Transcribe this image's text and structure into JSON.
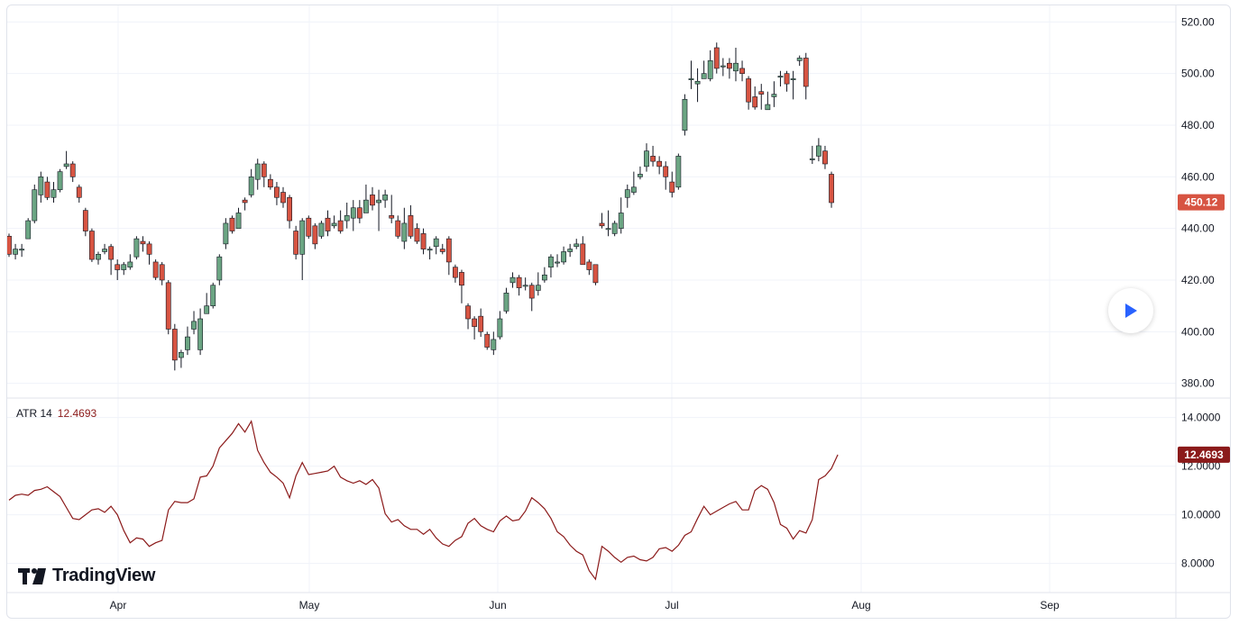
{
  "indicator": {
    "name": "ATR 14",
    "value": "12.4693"
  },
  "brand": {
    "name": "TradingView"
  },
  "colors": {
    "up": "#6ba583",
    "down": "#d75442",
    "atr_line": "#8b1a1a",
    "price_badge": "#d75442",
    "atr_badge": "#8b1a1a"
  },
  "chart_data": [
    {
      "type": "candlestick",
      "price_axis_ticks": [
        "520.00",
        "500.00",
        "480.00",
        "460.00",
        "440.00",
        "420.00",
        "400.00",
        "380.00"
      ],
      "ylim": [
        375,
        525
      ],
      "last_price": "450.12",
      "x_ticks": [
        "Apr",
        "May",
        "Jun",
        "Jul",
        "Aug",
        "Sep"
      ],
      "candles": [
        [
          437,
          430,
          438,
          429
        ],
        [
          430,
          432,
          434,
          428
        ],
        [
          432,
          432,
          434,
          429
        ],
        [
          436,
          443,
          444,
          436
        ],
        [
          443,
          455,
          457,
          442
        ],
        [
          453,
          460,
          462,
          450
        ],
        [
          458,
          452,
          460,
          451
        ],
        [
          452,
          455,
          458,
          450
        ],
        [
          455,
          462,
          463,
          454
        ],
        [
          464,
          465,
          470,
          463
        ],
        [
          465,
          460,
          466,
          458
        ],
        [
          456,
          452,
          457,
          450
        ],
        [
          447,
          439,
          448,
          437
        ],
        [
          439,
          428,
          440,
          427
        ],
        [
          428,
          430,
          431,
          426
        ],
        [
          431,
          432,
          434,
          430
        ],
        [
          433,
          428,
          434,
          422
        ],
        [
          426,
          424,
          428,
          420
        ],
        [
          424,
          426,
          427,
          422
        ],
        [
          425,
          427,
          430,
          424
        ],
        [
          429,
          436,
          437,
          428
        ],
        [
          435,
          434,
          437,
          431
        ],
        [
          434,
          430,
          435,
          426
        ],
        [
          427,
          421,
          428,
          420
        ],
        [
          426,
          420,
          427,
          418
        ],
        [
          419,
          401,
          420,
          399
        ],
        [
          401,
          389,
          403,
          385
        ],
        [
          390,
          392,
          393,
          386
        ],
        [
          393,
          398,
          402,
          391
        ],
        [
          401,
          404,
          408,
          399
        ],
        [
          393,
          405,
          409,
          391
        ],
        [
          407,
          410,
          415,
          407
        ],
        [
          410,
          418,
          419,
          409
        ],
        [
          420,
          429,
          430,
          418
        ],
        [
          434,
          442,
          444,
          432
        ],
        [
          444,
          439,
          445,
          438
        ],
        [
          440,
          446,
          448,
          440
        ],
        [
          451,
          450,
          452,
          447
        ],
        [
          453,
          460,
          463,
          452
        ],
        [
          459,
          465,
          467,
          455
        ],
        [
          465,
          460,
          466,
          456
        ],
        [
          459,
          456,
          461,
          455
        ],
        [
          456,
          452,
          458,
          449
        ],
        [
          454,
          450,
          456,
          448
        ],
        [
          452,
          443,
          453,
          440
        ],
        [
          439,
          430,
          441,
          428
        ],
        [
          430,
          443,
          444,
          420
        ],
        [
          444,
          437,
          445,
          436
        ],
        [
          441,
          434,
          442,
          432
        ],
        [
          437,
          442,
          443,
          436
        ],
        [
          444,
          439,
          447,
          437
        ],
        [
          441,
          442,
          445,
          440
        ],
        [
          443,
          439,
          447,
          438
        ],
        [
          443,
          445,
          450,
          440
        ],
        [
          444,
          448,
          451,
          439
        ],
        [
          448,
          444,
          451,
          442
        ],
        [
          446,
          451,
          457,
          449
        ],
        [
          453,
          449,
          456,
          447
        ],
        [
          450,
          451,
          455,
          439
        ],
        [
          451,
          453,
          455,
          448
        ],
        [
          445,
          444,
          453,
          442
        ],
        [
          443,
          437,
          445,
          436
        ],
        [
          435,
          442,
          448,
          432
        ],
        [
          445,
          437,
          449,
          436
        ],
        [
          440,
          435,
          442,
          434
        ],
        [
          438,
          432,
          440,
          430
        ],
        [
          432,
          432,
          433,
          428
        ],
        [
          433,
          436,
          437,
          430
        ],
        [
          432,
          431,
          434,
          430
        ],
        [
          436,
          427,
          437,
          422
        ],
        [
          425,
          421,
          426,
          419
        ],
        [
          423,
          418,
          424,
          411
        ],
        [
          410,
          405,
          411,
          401
        ],
        [
          405,
          402,
          406,
          397
        ],
        [
          406,
          400,
          409,
          398
        ],
        [
          399,
          394,
          400,
          393
        ],
        [
          393,
          397,
          400,
          391
        ],
        [
          398,
          405,
          408,
          397
        ],
        [
          408,
          415,
          417,
          407
        ],
        [
          419,
          421,
          423,
          417
        ],
        [
          421,
          417,
          422,
          414
        ],
        [
          418,
          418,
          421,
          416
        ],
        [
          418,
          413,
          419,
          408
        ],
        [
          416,
          418,
          423,
          414
        ],
        [
          420,
          422,
          425,
          419
        ],
        [
          425,
          429,
          430,
          421
        ],
        [
          427,
          427,
          430,
          425
        ],
        [
          427,
          431,
          433,
          426
        ],
        [
          431,
          432,
          434,
          429
        ],
        [
          433,
          434,
          436,
          432
        ],
        [
          434,
          426,
          437,
          426
        ],
        [
          427,
          424,
          428,
          422
        ],
        [
          426,
          419,
          426,
          418
        ],
        [
          442,
          441,
          446,
          440
        ],
        [
          440,
          440,
          447,
          437
        ],
        [
          438,
          442,
          443,
          437
        ],
        [
          440,
          446,
          452,
          438
        ],
        [
          452,
          455,
          457,
          448
        ],
        [
          454,
          456,
          462,
          453
        ],
        [
          460,
          461,
          464,
          459
        ],
        [
          464,
          470,
          473,
          462
        ],
        [
          468,
          466,
          472,
          464
        ],
        [
          466,
          464,
          468,
          461
        ],
        [
          464,
          460,
          466,
          455
        ],
        [
          458,
          454,
          462,
          452
        ],
        [
          456,
          468,
          469,
          455
        ],
        [
          478,
          490,
          492,
          476
        ],
        [
          498,
          498,
          505,
          494
        ],
        [
          496,
          497,
          502,
          489
        ],
        [
          498,
          500,
          505,
          499
        ],
        [
          498,
          505,
          509,
          497
        ],
        [
          510,
          502,
          512,
          500
        ],
        [
          503,
          503,
          506,
          499
        ],
        [
          504,
          502,
          506,
          498
        ],
        [
          501,
          504,
          510,
          497
        ],
        [
          502,
          500,
          505,
          497
        ],
        [
          498,
          489,
          499,
          486
        ],
        [
          491,
          487,
          495,
          486
        ],
        [
          493,
          492,
          496,
          486
        ],
        [
          486,
          488,
          493,
          486
        ],
        [
          491,
          492,
          497,
          487
        ],
        [
          499,
          499,
          501,
          495
        ],
        [
          500,
          496,
          501,
          493
        ],
        [
          498,
          498,
          501,
          490
        ],
        [
          505,
          506,
          507,
          503
        ],
        [
          506,
          495,
          508,
          490
        ],
        [
          467,
          467,
          472,
          465
        ],
        [
          468,
          472,
          475,
          466
        ],
        [
          470,
          465,
          472,
          463
        ],
        [
          461,
          450,
          462,
          448
        ]
      ]
    },
    {
      "type": "line",
      "name": "ATR 14",
      "axis_ticks": [
        "14.0000",
        "12.0000",
        "10.0000",
        "8.0000"
      ],
      "ylim": [
        6.8,
        14.8
      ],
      "last_value": "12.4693",
      "values": [
        10.6,
        10.8,
        10.85,
        10.8,
        11.0,
        11.05,
        11.15,
        10.95,
        10.75,
        10.3,
        9.85,
        9.8,
        10.0,
        10.2,
        10.25,
        10.1,
        10.35,
        10.0,
        9.35,
        8.85,
        9.05,
        9.0,
        8.7,
        8.85,
        8.95,
        10.2,
        10.55,
        10.5,
        10.5,
        10.65,
        11.55,
        11.6,
        12.0,
        12.75,
        13.05,
        13.35,
        13.75,
        13.4,
        13.85,
        12.65,
        12.15,
        11.75,
        11.55,
        11.3,
        10.7,
        11.6,
        12.15,
        11.65,
        11.7,
        11.75,
        11.8,
        12.0,
        11.55,
        11.4,
        11.3,
        11.4,
        11.25,
        11.45,
        11.1,
        10.05,
        9.7,
        9.8,
        9.55,
        9.4,
        9.4,
        9.2,
        9.4,
        9.05,
        8.8,
        8.7,
        8.95,
        9.1,
        9.65,
        9.85,
        9.55,
        9.4,
        9.3,
        9.75,
        9.95,
        9.75,
        9.8,
        10.15,
        10.7,
        10.5,
        10.25,
        9.85,
        9.3,
        9.1,
        8.75,
        8.5,
        8.35,
        7.7,
        7.35,
        8.7,
        8.5,
        8.25,
        8.05,
        8.25,
        8.3,
        8.15,
        8.1,
        8.25,
        8.6,
        8.65,
        8.5,
        8.75,
        9.15,
        9.3,
        9.85,
        10.35,
        10.0,
        10.15,
        10.3,
        10.45,
        10.55,
        10.2,
        10.2,
        11.0,
        11.2,
        11.05,
        10.5,
        9.6,
        9.45,
        9.0,
        9.35,
        9.25,
        9.8,
        11.45,
        11.6,
        11.9,
        12.47
      ]
    }
  ]
}
